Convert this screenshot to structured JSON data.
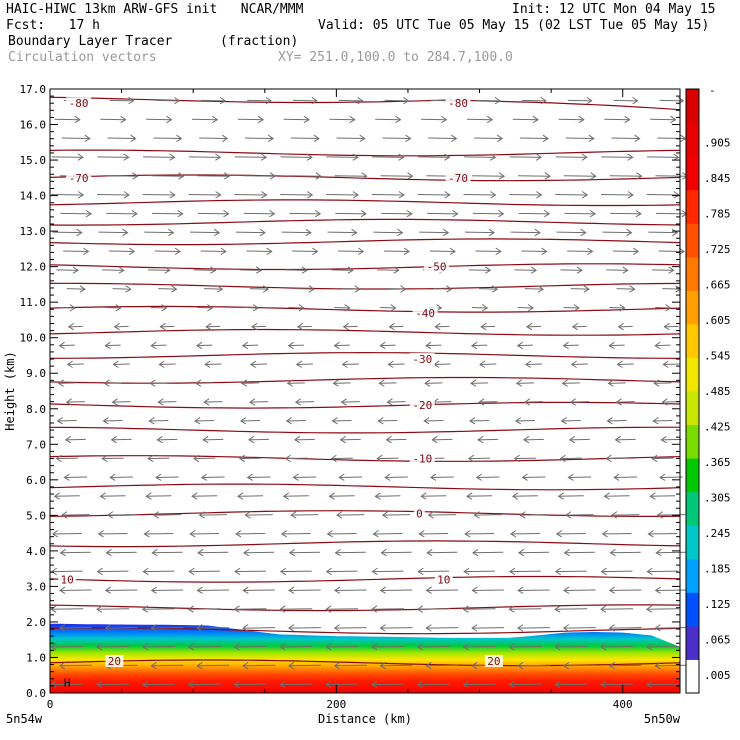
{
  "header": {
    "line1_left": "HAIC-HIWC 13km ARW-GFS init   NCAR/MMM",
    "line1_right": "Init: 12 UTC Mon 04 May 15",
    "line2_left": "Fcst:   17 h",
    "line2_right": "Valid: 05 UTC Tue 05 May 15 (02 LST Tue 05 May 15)",
    "line3_left": "Boundary Layer Tracer",
    "line3_mid": "(fraction)",
    "line4_left": "Circulation vectors",
    "line4_mid": "XY= 251.0,100.0 to 284.7,100.0"
  },
  "chart_data": {
    "type": "heatmap",
    "xlabel": "Distance (km)",
    "ylabel": "Height (km)",
    "xlim": [
      0,
      440
    ],
    "ylim": [
      0,
      17
    ],
    "xticks": [
      0,
      200,
      400
    ],
    "xtick_labels": [
      "0",
      "200",
      "400"
    ],
    "yticks": [
      0,
      1,
      2,
      3,
      4,
      5,
      6,
      7,
      8,
      9,
      10,
      11,
      12,
      13,
      14,
      15,
      16,
      17
    ],
    "ytick_labels": [
      "0.0",
      "1.0",
      "2.0",
      "3.0",
      "4.0",
      "5.0",
      "6.0",
      "7.0",
      "8.0",
      "9.0",
      "10.0",
      "11.0",
      "12.0",
      "13.0",
      "14.0",
      "15.0",
      "16.0",
      "17.0"
    ],
    "endpoint_labels": {
      "left": "5n54w",
      "right": "5n50w"
    },
    "colorbar": {
      "labels": [
        ".905",
        ".845",
        ".785",
        ".725",
        ".665",
        ".605",
        ".545",
        ".485",
        ".425",
        ".365",
        ".305",
        ".245",
        ".185",
        ".125",
        ".065",
        ".005"
      ],
      "top_label": "-",
      "colors": [
        "#ffffff",
        "#4a2fc8",
        "#0050ff",
        "#00a0ff",
        "#00c8c8",
        "#00c878",
        "#00c800",
        "#78dc00",
        "#c8e600",
        "#f0e600",
        "#ffc800",
        "#ffa000",
        "#ff7800",
        "#ff5000",
        "#ff2800",
        "#f00000",
        "#e60000",
        "#d80000"
      ]
    },
    "pbl_top_km": [
      [
        0,
        1.95
      ],
      [
        40,
        1.93
      ],
      [
        80,
        1.92
      ],
      [
        110,
        1.9
      ],
      [
        140,
        1.75
      ],
      [
        160,
        1.65
      ],
      [
        200,
        1.6
      ],
      [
        240,
        1.58
      ],
      [
        280,
        1.55
      ],
      [
        320,
        1.55
      ],
      [
        340,
        1.62
      ],
      [
        360,
        1.7
      ],
      [
        380,
        1.72
      ],
      [
        400,
        1.7
      ],
      [
        420,
        1.62
      ],
      [
        440,
        1.3
      ]
    ],
    "temperature_contour_labels": [
      {
        "value": "-80",
        "x": 20,
        "y": 16.6
      },
      {
        "value": "-80",
        "x": 285,
        "y": 16.6
      },
      {
        "value": "-70",
        "x": 20,
        "y": 14.5
      },
      {
        "value": "-70",
        "x": 285,
        "y": 14.5
      },
      {
        "value": "-50",
        "x": 270,
        "y": 12.0
      },
      {
        "value": "-40",
        "x": 262,
        "y": 10.7
      },
      {
        "value": "-30",
        "x": 260,
        "y": 9.4
      },
      {
        "value": "-20",
        "x": 260,
        "y": 8.1
      },
      {
        "value": "-10",
        "x": 260,
        "y": 6.6
      },
      {
        "value": "0",
        "x": 258,
        "y": 5.05
      },
      {
        "value": "10",
        "x": 12,
        "y": 3.2
      },
      {
        "value": "10",
        "x": 275,
        "y": 3.2
      },
      {
        "value": "20",
        "x": 45,
        "y": 0.9
      },
      {
        "value": "20",
        "x": 310,
        "y": 0.9
      }
    ],
    "high_marker": {
      "label": "H",
      "x": 12,
      "y": 0.3
    },
    "contour_levels_km": [
      0.85,
      1.75,
      2.4,
      3.2,
      4.2,
      5.05,
      5.8,
      6.6,
      7.4,
      8.1,
      8.8,
      9.5,
      10.15,
      10.8,
      11.45,
      12.0,
      12.7,
      13.25,
      13.8,
      14.5,
      15.2,
      16.7
    ],
    "wind_u_by_height": [
      [
        0.5,
        -1.0
      ],
      [
        2.5,
        -1.0
      ],
      [
        4.0,
        -0.9
      ],
      [
        5.0,
        -0.75
      ],
      [
        6.0,
        -0.5
      ],
      [
        7.0,
        -0.35
      ],
      [
        8.0,
        -0.25
      ],
      [
        9.0,
        -0.15
      ],
      [
        10.0,
        -0.05
      ],
      [
        11.0,
        0.1
      ],
      [
        12.0,
        0.45
      ],
      [
        13.0,
        0.85
      ],
      [
        14.0,
        1.0
      ],
      [
        15.0,
        1.0
      ],
      [
        16.0,
        0.65
      ],
      [
        17.0,
        0.5
      ]
    ]
  }
}
